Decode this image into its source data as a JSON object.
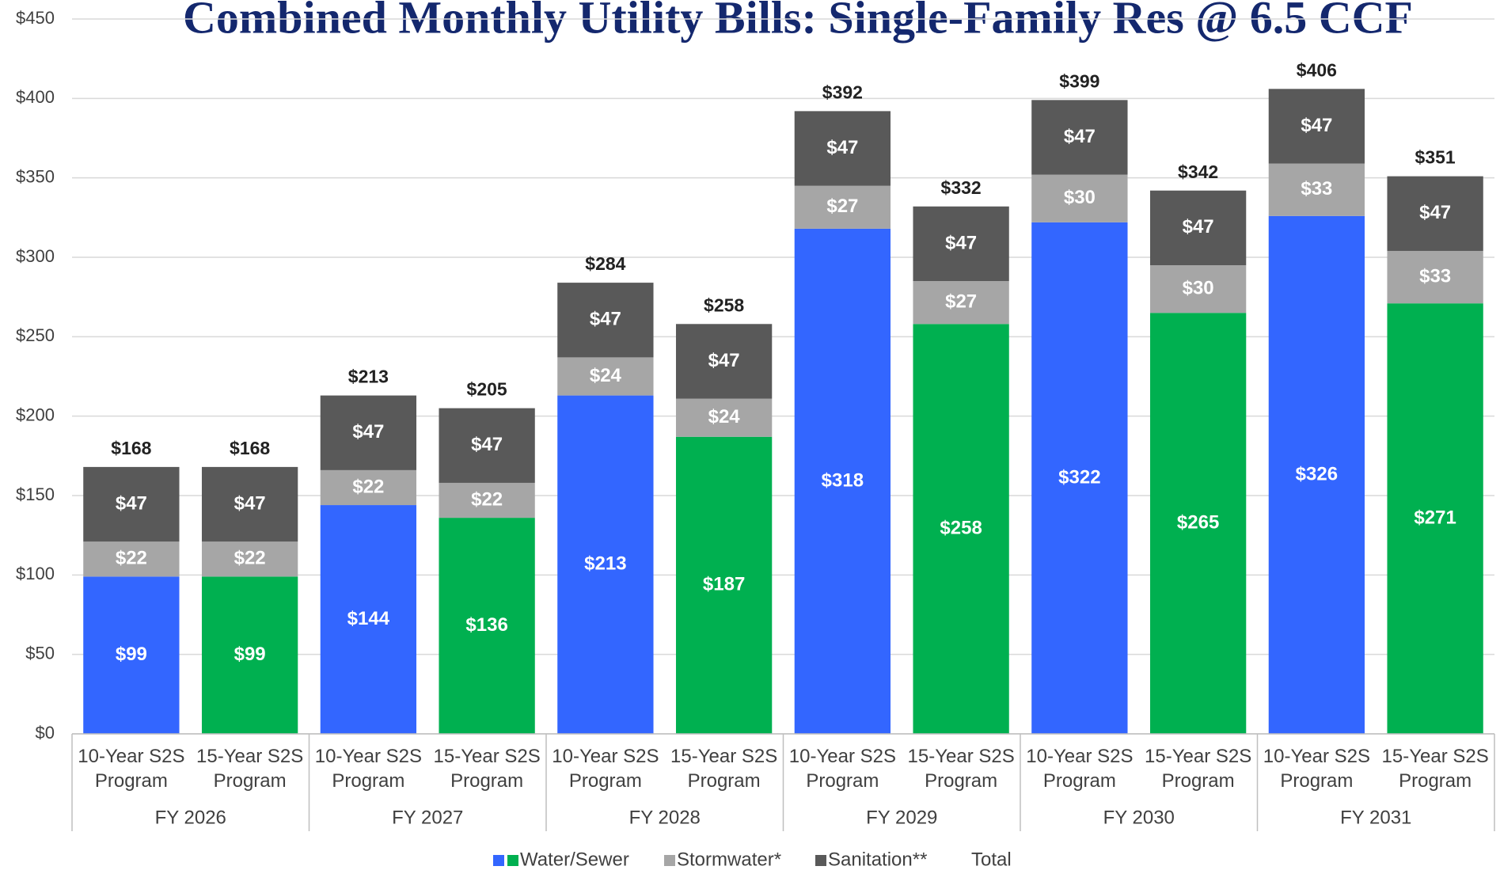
{
  "chart_data": {
    "type": "stacked_bar",
    "title": "Combined Monthly Utility Bills: Single-Family Res @ 6.5 CCF",
    "categories": [
      "10-Year S2S Program",
      "15-Year S2S Program",
      "10-Year S2S Program",
      "15-Year S2S Program",
      "10-Year S2S Program",
      "15-Year S2S Program",
      "10-Year S2S Program",
      "15-Year S2S Program",
      "10-Year S2S Program",
      "15-Year S2S Program",
      "10-Year S2S Program",
      "15-Year S2S Program"
    ],
    "groups": [
      "FY 2026",
      "FY 2027",
      "FY 2028",
      "FY 2029",
      "FY 2030",
      "FY 2031"
    ],
    "series": [
      {
        "name": "Water/Sewer",
        "colors": [
          "#3366ff",
          "#00b050",
          "#3366ff",
          "#00b050",
          "#3366ff",
          "#00b050",
          "#3366ff",
          "#00b050",
          "#3366ff",
          "#00b050",
          "#3366ff",
          "#00b050"
        ],
        "values": [
          99,
          99,
          144,
          136,
          213,
          187,
          318,
          258,
          322,
          265,
          326,
          271
        ],
        "value_labels": [
          "$99",
          "$99",
          "$144",
          "$136",
          "$213",
          "$187",
          "$318",
          "$258",
          "$322",
          "$265",
          "$326",
          "$271"
        ]
      },
      {
        "name": "Stormwater*",
        "color": "#a6a6a6",
        "values": [
          22,
          22,
          22,
          22,
          24,
          24,
          27,
          27,
          30,
          30,
          33,
          33
        ],
        "value_labels": [
          "$22",
          "$22",
          "$22",
          "$22",
          "$24",
          "$24",
          "$27",
          "$27",
          "$30",
          "$30",
          "$33",
          "$33"
        ]
      },
      {
        "name": "Sanitation**",
        "color": "#595959",
        "values": [
          47,
          47,
          47,
          47,
          47,
          47,
          47,
          47,
          47,
          47,
          47,
          47
        ],
        "value_labels": [
          "$47",
          "$47",
          "$47",
          "$47",
          "$47",
          "$47",
          "$47",
          "$47",
          "$47",
          "$47",
          "$47",
          "$47"
        ]
      },
      {
        "name": "Total",
        "total": true,
        "values": [
          168,
          168,
          213,
          205,
          284,
          258,
          392,
          332,
          399,
          342,
          406,
          351
        ],
        "value_labels": [
          "$168",
          "$168",
          "$213",
          "$205",
          "$284",
          "$258",
          "$392",
          "$332",
          "$399",
          "$342",
          "$406",
          "$351"
        ]
      }
    ],
    "ylim": [
      0,
      450
    ],
    "yticks": [
      {
        "value": 0,
        "label": "$0"
      },
      {
        "value": 50,
        "label": "$50"
      },
      {
        "value": 100,
        "label": "$100"
      },
      {
        "value": 150,
        "label": "$150"
      },
      {
        "value": 200,
        "label": "$200"
      },
      {
        "value": 250,
        "label": "$250"
      },
      {
        "value": 300,
        "label": "$300"
      },
      {
        "value": 350,
        "label": "$350"
      },
      {
        "value": 400,
        "label": "$400"
      },
      {
        "value": 450,
        "label": "$450"
      }
    ],
    "grid": true,
    "legend": "bottom"
  }
}
